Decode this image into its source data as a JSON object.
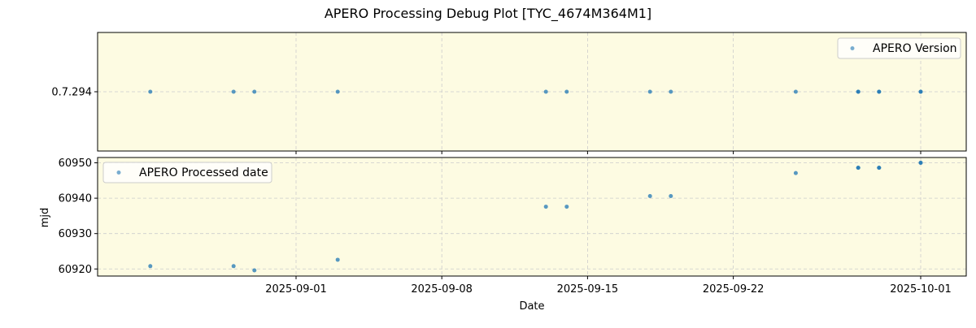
{
  "figure_title": "APERO Processing Debug Plot [TYC_4674M364M1]",
  "colors": {
    "panel_bg": "#fdfbe2",
    "point": "#1f77b4",
    "grid": "#cccccc"
  },
  "chart_data": [
    {
      "type": "scatter",
      "legend": {
        "label": "APERO Version",
        "position": "upper-right"
      },
      "ylabel": "",
      "yticks": [
        {
          "value": 0.7294,
          "label": "0.7.294"
        }
      ],
      "ylim": [
        0.7293,
        0.7295
      ],
      "grid": true,
      "series": [
        {
          "name": "APERO Version",
          "x": [
            "2025-08-25",
            "2025-08-29",
            "2025-08-30",
            "2025-09-03",
            "2025-09-13",
            "2025-09-14",
            "2025-09-18",
            "2025-09-19",
            "2025-09-25",
            "2025-09-28",
            "2025-09-28",
            "2025-09-29",
            "2025-09-29",
            "2025-10-01",
            "2025-10-01"
          ],
          "y": [
            0.7294,
            0.7294,
            0.7294,
            0.7294,
            0.7294,
            0.7294,
            0.7294,
            0.7294,
            0.7294,
            0.7294,
            0.7294,
            0.7294,
            0.7294,
            0.7294,
            0.7294
          ]
        }
      ]
    },
    {
      "type": "scatter",
      "legend": {
        "label": "APERO Processed date",
        "position": "upper-left"
      },
      "xlabel": "Date",
      "ylabel": "mjd",
      "ylim": [
        60918,
        60951.5
      ],
      "yticks": [
        {
          "value": 60920,
          "label": "60920"
        },
        {
          "value": 60930,
          "label": "60930"
        },
        {
          "value": 60940,
          "label": "60940"
        },
        {
          "value": 60950,
          "label": "60950"
        }
      ],
      "xticks": [
        {
          "value": "2025-09-01",
          "label": "2025-09-01"
        },
        {
          "value": "2025-09-08",
          "label": "2025-09-08"
        },
        {
          "value": "2025-09-15",
          "label": "2025-09-15"
        },
        {
          "value": "2025-09-22",
          "label": "2025-09-22"
        },
        {
          "value": "2025-10-01",
          "label": "2025-10-01"
        }
      ],
      "xlim": [
        "2025-08-24",
        "2025-10-02"
      ],
      "grid": true,
      "series": [
        {
          "name": "APERO Processed date",
          "x": [
            "2025-08-25",
            "2025-08-29",
            "2025-08-30",
            "2025-09-03",
            "2025-09-13",
            "2025-09-14",
            "2025-09-18",
            "2025-09-19",
            "2025-09-25",
            "2025-09-28",
            "2025-09-28",
            "2025-09-29",
            "2025-09-29",
            "2025-10-01",
            "2025-10-01"
          ],
          "y": [
            60920.8,
            60920.8,
            60919.6,
            60922.6,
            60937.6,
            60937.6,
            60940.6,
            60940.6,
            60947.1,
            60948.6,
            60948.6,
            60948.6,
            60948.6,
            60950.0,
            60950.0
          ]
        }
      ]
    }
  ]
}
